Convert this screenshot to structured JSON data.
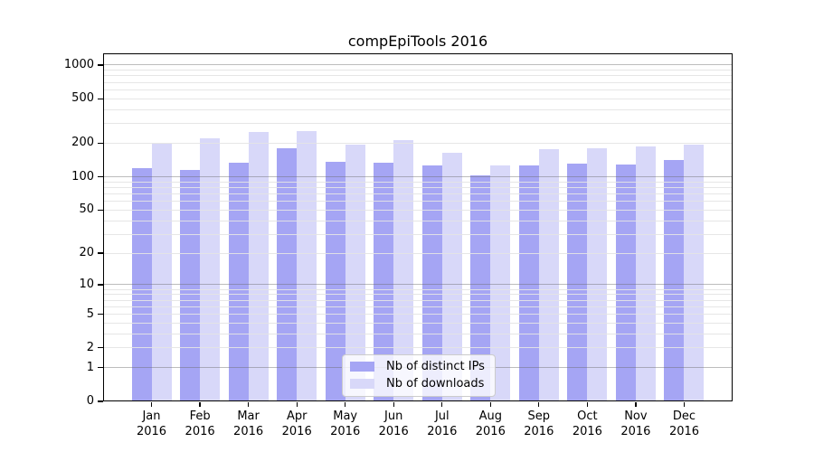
{
  "figure": {
    "background": "#ffffff"
  },
  "chart_data": {
    "type": "bar",
    "title": "compEpiTools 2016",
    "categories": [
      "Jan",
      "Feb",
      "Mar",
      "Apr",
      "May",
      "Jun",
      "Jul",
      "Aug",
      "Sep",
      "Oct",
      "Nov",
      "Dec"
    ],
    "x_tick_second_line": "2016",
    "series": [
      {
        "name": "Nb of distinct IPs",
        "color": "#a5a5f4",
        "values": [
          120,
          115,
          133,
          179,
          137,
          133,
          127,
          102,
          126,
          131,
          129,
          141
        ]
      },
      {
        "name": "Nb of downloads",
        "color": "#d8d8f9",
        "values": [
          199,
          220,
          251,
          256,
          193,
          215,
          163,
          126,
          177,
          180,
          188,
          193
        ]
      }
    ],
    "xlabel": "",
    "ylabel": "",
    "y_ticks": [
      0,
      1,
      2,
      5,
      10,
      20,
      50,
      100,
      200,
      500,
      1000
    ],
    "y_scale": "log10(value+1)",
    "ylim": [
      0,
      1280
    ],
    "grid": "on",
    "grid_major_values": [
      1,
      10,
      100,
      1000
    ],
    "grid_major_color": "#b3b3b3",
    "grid_minor_color": "#e6e6e6",
    "legend_position": "lower center inside",
    "axis_color": "#000000",
    "text_color": "#000000"
  }
}
